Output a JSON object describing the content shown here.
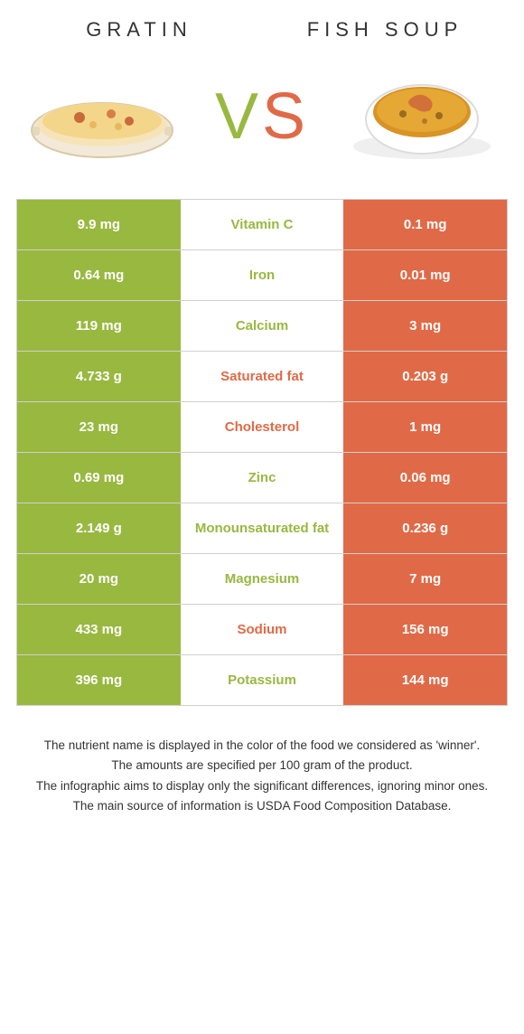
{
  "colors": {
    "left_bg": "#99b840",
    "right_bg": "#e06a47",
    "left_winner_text": "#99b840",
    "right_winner_text": "#e06a47",
    "border": "#d0d0d0",
    "text": "#333333",
    "bg": "#ffffff"
  },
  "header": {
    "left_title": "GRATIN",
    "right_title": "FISH SOUP",
    "vs_v": "V",
    "vs_s": "S"
  },
  "rows": [
    {
      "label": "Vitamin C",
      "winner": "left",
      "left": "9.9 mg",
      "right": "0.1 mg"
    },
    {
      "label": "Iron",
      "winner": "left",
      "left": "0.64 mg",
      "right": "0.01 mg"
    },
    {
      "label": "Calcium",
      "winner": "left",
      "left": "119 mg",
      "right": "3 mg"
    },
    {
      "label": "Saturated fat",
      "winner": "right",
      "left": "4.733 g",
      "right": "0.203 g"
    },
    {
      "label": "Cholesterol",
      "winner": "right",
      "left": "23 mg",
      "right": "1 mg"
    },
    {
      "label": "Zinc",
      "winner": "left",
      "left": "0.69 mg",
      "right": "0.06 mg"
    },
    {
      "label": "Monounsaturated fat",
      "winner": "left",
      "left": "2.149 g",
      "right": "0.236 g"
    },
    {
      "label": "Magnesium",
      "winner": "left",
      "left": "20 mg",
      "right": "7 mg"
    },
    {
      "label": "Sodium",
      "winner": "right",
      "left": "433 mg",
      "right": "156 mg"
    },
    {
      "label": "Potassium",
      "winner": "left",
      "left": "396 mg",
      "right": "144 mg"
    }
  ],
  "footer": {
    "line1": "The nutrient name is displayed in the color of the food we considered as 'winner'.",
    "line2": "The amounts are specified per 100 gram of the product.",
    "line3": "The infographic aims to display only the significant differences, ignoring minor ones.",
    "line4": "The main source of information is USDA Food Composition Database."
  }
}
